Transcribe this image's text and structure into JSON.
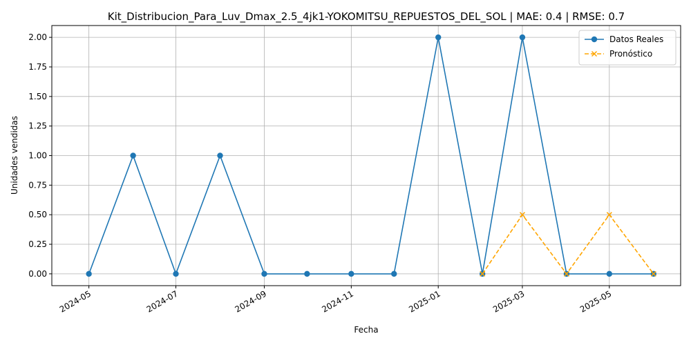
{
  "chart_data": {
    "type": "line",
    "title": "Kit_Distribucion_Para_Luv_Dmax_2.5_4jk1-YOKOMITSU_REPUESTOS_DEL_SOL | MAE: 0.4 | RMSE: 0.7",
    "xlabel": "Fecha",
    "ylabel": "Unidades vendidas",
    "x_ticks": [
      "2024-05",
      "2024-07",
      "2024-09",
      "2024-11",
      "2025-01",
      "2025-03",
      "2025-05"
    ],
    "y_ticks": [
      "0.00",
      "0.25",
      "0.50",
      "0.75",
      "1.00",
      "1.25",
      "1.50",
      "1.75",
      "2.00"
    ],
    "ylim": [
      -0.1,
      2.1
    ],
    "xlim": [
      "2024-04-05",
      "2025-06-20"
    ],
    "grid": true,
    "legend_position": "top-right",
    "series": [
      {
        "name": "Datos Reales",
        "color": "#1f77b4",
        "marker": "circle",
        "linestyle": "solid",
        "x": [
          "2024-05-01",
          "2024-06-01",
          "2024-07-01",
          "2024-08-01",
          "2024-09-01",
          "2024-10-01",
          "2024-11-01",
          "2024-12-01",
          "2025-01-01",
          "2025-02-01",
          "2025-03-01",
          "2025-04-01",
          "2025-05-01",
          "2025-06-01"
        ],
        "values": [
          0,
          1,
          0,
          1,
          0,
          0,
          0,
          0,
          2,
          0,
          2,
          0,
          0,
          0
        ]
      },
      {
        "name": "Pronóstico",
        "color": "#ffa500",
        "marker": "x",
        "linestyle": "dashed",
        "x": [
          "2025-02-01",
          "2025-03-01",
          "2025-04-01",
          "2025-05-01",
          "2025-06-01"
        ],
        "values": [
          0,
          0.5,
          0,
          0.5,
          0
        ]
      }
    ]
  }
}
